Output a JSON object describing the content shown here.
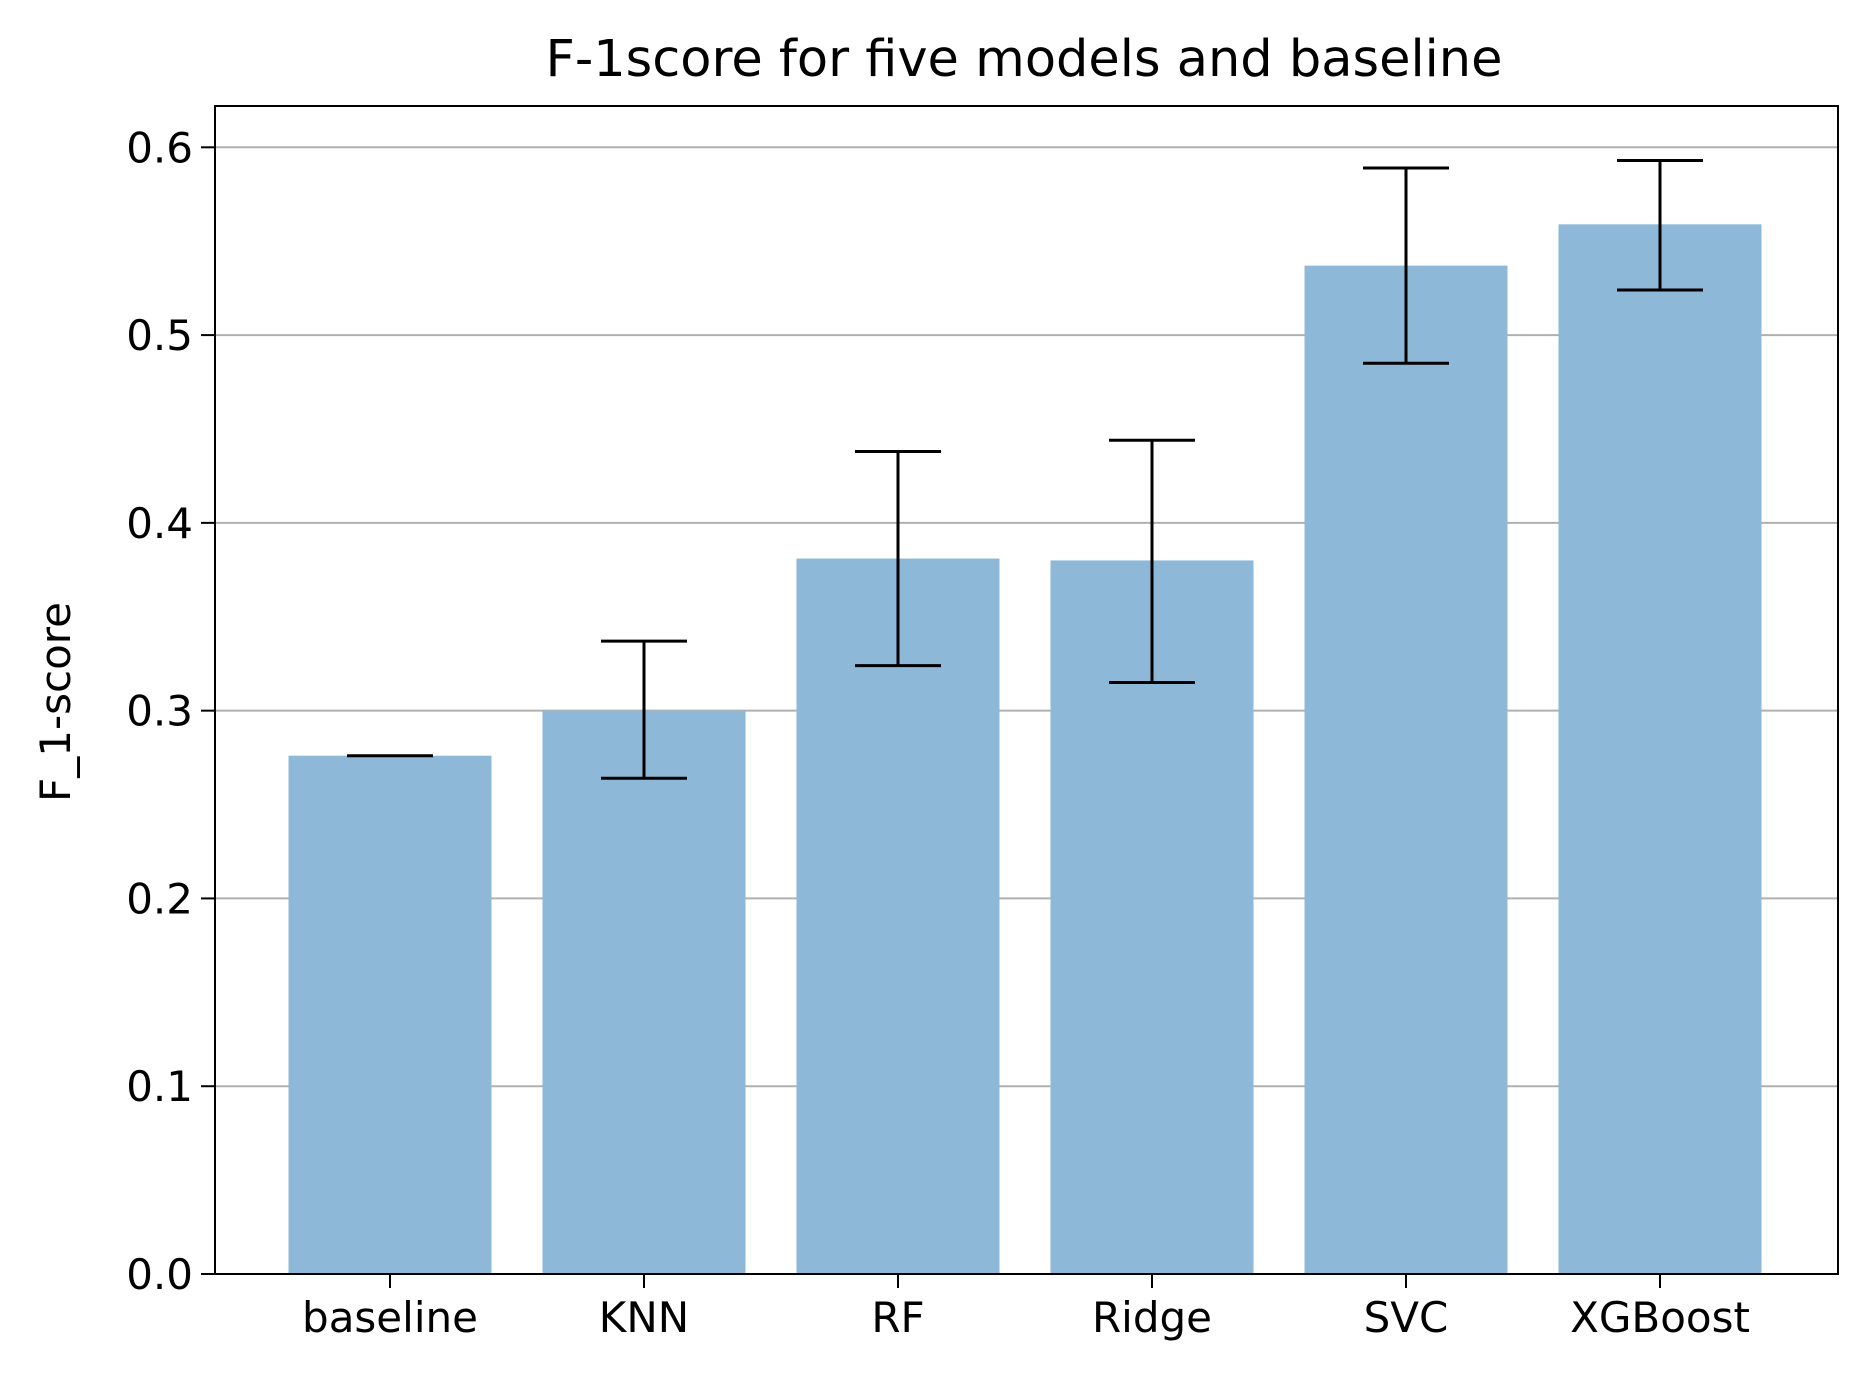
{
  "chart_data": {
    "type": "bar",
    "title": "F-1score for five models and baseline",
    "xlabel": "",
    "ylabel": "F_1-score",
    "categories": [
      "baseline",
      "KNN",
      "RF",
      "Ridge",
      "SVC",
      "XGBoost"
    ],
    "values": [
      0.276,
      0.3,
      0.381,
      0.38,
      0.537,
      0.559
    ],
    "error_bars": [
      {
        "lower": 0.276,
        "upper": 0.276
      },
      {
        "lower": 0.264,
        "upper": 0.337
      },
      {
        "lower": 0.324,
        "upper": 0.438
      },
      {
        "lower": 0.315,
        "upper": 0.444
      },
      {
        "lower": 0.485,
        "upper": 0.589
      },
      {
        "lower": 0.524,
        "upper": 0.593
      }
    ],
    "ylim": [
      0,
      0.622
    ],
    "yticks": [
      0.0,
      0.1,
      0.2,
      0.3,
      0.4,
      0.5,
      0.6
    ],
    "ytick_labels": [
      "0.0",
      "0.1",
      "0.2",
      "0.3",
      "0.4",
      "0.5",
      "0.6"
    ],
    "grid": "y-axis horizontal lines",
    "legend": "none",
    "colors": {
      "bar": "#8db8d8",
      "error_bar": "#000000",
      "grid": "#b0b0b0",
      "axes": "#000000"
    }
  }
}
